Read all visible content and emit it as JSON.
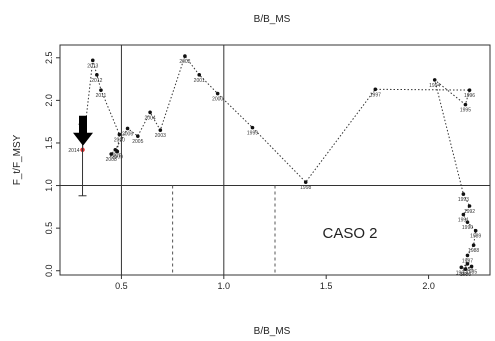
{
  "chart_data": {
    "type": "scatter",
    "title": "B/B_MS",
    "xlabel": "B/B_MS",
    "ylabel": "F_t/F_MSY",
    "xlim": [
      0.2,
      2.3
    ],
    "ylim": [
      -0.05,
      2.65
    ],
    "x_ticks": [
      "0.5",
      "1.0",
      "1.5",
      "2.0"
    ],
    "y_ticks": [
      "0.0",
      "0.5",
      "1.0",
      "1.5",
      "2.0",
      "2.5"
    ],
    "grid": false,
    "colors": {
      "line": "#333333",
      "points": "#111111",
      "current_point": "#d62728",
      "arrow": "#000000"
    },
    "reference_lines": {
      "horizontal_solid": [
        1.0
      ],
      "vertical_solid": [
        0.5,
        1.0
      ],
      "vertical_dashed": [
        0.75,
        1.25
      ]
    },
    "series": [
      {
        "labels": [
          "1983",
          "1984",
          "1985",
          "1986",
          "1987",
          "1988",
          "1989",
          "1990",
          "1991",
          "1992",
          "1993",
          "1994",
          "1995",
          "1996",
          "1997",
          "1998",
          "1999",
          "2000",
          "2001",
          "2002",
          "2003",
          "2004",
          "2005",
          "2006",
          "2007",
          "2008",
          "2009",
          "2010",
          "2011",
          "2012",
          "2013",
          "2014"
        ],
        "x": [
          2.16,
          2.19,
          2.21,
          2.18,
          2.19,
          2.22,
          2.23,
          2.19,
          2.17,
          2.2,
          2.17,
          2.03,
          2.18,
          2.2,
          1.74,
          1.4,
          1.14,
          0.97,
          0.88,
          0.81,
          0.69,
          0.64,
          0.58,
          0.53,
          0.47,
          0.45,
          0.48,
          0.49,
          0.4,
          0.38,
          0.36,
          0.31
        ],
        "y": [
          0.04,
          0.08,
          0.05,
          0.02,
          0.18,
          0.3,
          0.47,
          0.57,
          0.66,
          0.76,
          0.9,
          2.24,
          1.95,
          2.12,
          2.13,
          1.04,
          1.68,
          2.08,
          2.3,
          2.52,
          1.65,
          1.86,
          1.58,
          1.67,
          1.42,
          1.37,
          1.4,
          1.6,
          2.12,
          2.3,
          2.47,
          1.42
        ]
      }
    ],
    "error_bar": {
      "x": 0.31,
      "y": 1.42,
      "low": 0.88,
      "high": 1.72
    },
    "annotations": [
      "CASO 2"
    ]
  }
}
